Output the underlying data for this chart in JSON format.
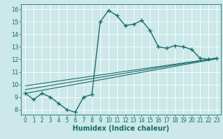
{
  "xlabel": "Humidex (Indice chaleur)",
  "bg_color": "#cce8e8",
  "line_color": "#1a6b6b",
  "grid_color": "#ffffff",
  "xlim": [
    -0.5,
    23.5
  ],
  "ylim": [
    7.6,
    16.4
  ],
  "xticks": [
    0,
    1,
    2,
    3,
    4,
    5,
    6,
    7,
    8,
    9,
    10,
    11,
    12,
    13,
    14,
    15,
    16,
    17,
    18,
    19,
    20,
    21,
    22,
    23
  ],
  "yticks": [
    8,
    9,
    10,
    11,
    12,
    13,
    14,
    15,
    16
  ],
  "main_x": [
    0,
    1,
    2,
    3,
    4,
    5,
    6,
    7,
    8,
    9,
    10,
    11,
    12,
    13,
    14,
    15,
    16,
    17,
    18,
    19,
    20,
    21,
    22,
    23
  ],
  "main_y": [
    9.3,
    8.8,
    9.3,
    9.0,
    8.5,
    8.0,
    7.8,
    9.0,
    9.2,
    15.0,
    15.9,
    15.5,
    14.7,
    14.8,
    15.1,
    14.3,
    13.0,
    12.9,
    13.1,
    13.0,
    12.8,
    12.1,
    12.0,
    12.1
  ],
  "trend1_x": [
    0,
    23
  ],
  "trend1_y": [
    9.3,
    12.05
  ],
  "trend2_x": [
    0,
    23
  ],
  "trend2_y": [
    9.6,
    12.1
  ],
  "trend3_x": [
    0,
    23
  ],
  "trend3_y": [
    9.9,
    12.1
  ],
  "xlabel_fontsize": 7,
  "tick_fontsize": 5.5,
  "linewidth": 1.0,
  "marker_size": 4
}
